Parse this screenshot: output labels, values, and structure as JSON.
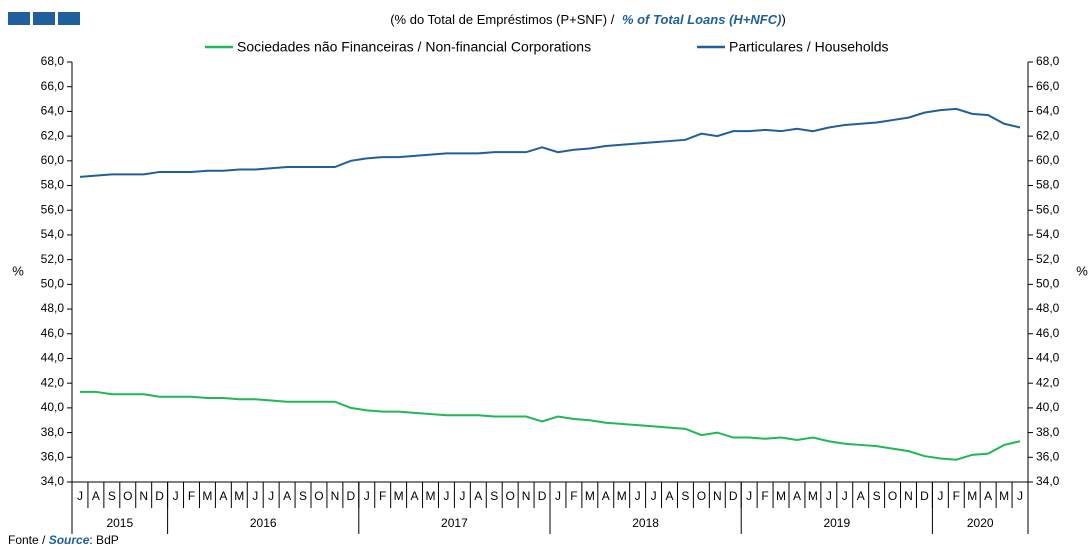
{
  "chart_data": {
    "type": "line",
    "title_pt": "(% do Total de Empréstimos (P+SNF)  /",
    "title_en": "% of Total Loans (H+NFC)",
    "title_close": ")",
    "ylabel": "%",
    "y2label": "%",
    "source_pt": "Fonte /",
    "source_en": "Source",
    "source_rest": ": BdP",
    "categories": [
      "J",
      "A",
      "S",
      "O",
      "N",
      "D",
      "J",
      "F",
      "M",
      "A",
      "M",
      "J",
      "J",
      "A",
      "S",
      "O",
      "N",
      "D",
      "J",
      "F",
      "M",
      "A",
      "M",
      "J",
      "J",
      "A",
      "S",
      "O",
      "N",
      "D",
      "J",
      "F",
      "M",
      "A",
      "M",
      "J",
      "J",
      "A",
      "S",
      "O",
      "N",
      "D",
      "J",
      "F",
      "M",
      "A",
      "M",
      "J",
      "J",
      "A",
      "S",
      "O",
      "N",
      "D",
      "J",
      "F",
      "M",
      "A",
      "M",
      "J"
    ],
    "years": [
      "2015",
      "2016",
      "2017",
      "2018",
      "2019",
      "2020"
    ],
    "year_spans": [
      6,
      12,
      12,
      12,
      12,
      6
    ],
    "series": [
      {
        "name": "Sociedades não Financeiras / Non-financial Corporations",
        "color": "#1db954",
        "values": [
          41.3,
          41.3,
          41.1,
          41.1,
          41.1,
          40.9,
          40.9,
          40.9,
          40.8,
          40.8,
          40.7,
          40.7,
          40.6,
          40.5,
          40.5,
          40.5,
          40.5,
          40.0,
          39.8,
          39.7,
          39.7,
          39.6,
          39.5,
          39.4,
          39.4,
          39.4,
          39.3,
          39.3,
          39.3,
          38.9,
          39.3,
          39.1,
          39.0,
          38.8,
          38.7,
          38.6,
          38.5,
          38.4,
          38.3,
          37.8,
          38.0,
          37.6,
          37.6,
          37.5,
          37.6,
          37.4,
          37.6,
          37.3,
          37.1,
          37.0,
          36.9,
          36.7,
          36.5,
          36.1,
          35.9,
          35.8,
          36.2,
          36.3,
          37.0,
          37.3
        ]
      },
      {
        "name": "Particulares / Households",
        "color": "#1f5f9e",
        "values": [
          58.7,
          58.8,
          58.9,
          58.9,
          58.9,
          59.1,
          59.1,
          59.1,
          59.2,
          59.2,
          59.3,
          59.3,
          59.4,
          59.5,
          59.5,
          59.5,
          59.5,
          60.0,
          60.2,
          60.3,
          60.3,
          60.4,
          60.5,
          60.6,
          60.6,
          60.6,
          60.7,
          60.7,
          60.7,
          61.1,
          60.7,
          60.9,
          61.0,
          61.2,
          61.3,
          61.4,
          61.5,
          61.6,
          61.7,
          62.2,
          62.0,
          62.4,
          62.4,
          62.5,
          62.4,
          62.6,
          62.4,
          62.7,
          62.9,
          63.0,
          63.1,
          63.3,
          63.5,
          63.9,
          64.1,
          64.2,
          63.8,
          63.7,
          63.0,
          62.7
        ]
      }
    ],
    "ylim": [
      34,
      68
    ],
    "yticks": [
      {
        "value": 34,
        "label": "34,0"
      },
      {
        "value": 36,
        "label": "36,0"
      },
      {
        "value": 38,
        "label": "38,0"
      },
      {
        "value": 40,
        "label": "40,0"
      },
      {
        "value": 42,
        "label": "42,0"
      },
      {
        "value": 44,
        "label": "44,0"
      },
      {
        "value": 46,
        "label": "46,0"
      },
      {
        "value": 48,
        "label": "48,0"
      },
      {
        "value": 50,
        "label": "50,0"
      },
      {
        "value": 52,
        "label": "52,0"
      },
      {
        "value": 54,
        "label": "54,0"
      },
      {
        "value": 56,
        "label": "56,0"
      },
      {
        "value": 58,
        "label": "58,0"
      },
      {
        "value": 60,
        "label": "60,0"
      },
      {
        "value": 62,
        "label": "62,0"
      },
      {
        "value": 64,
        "label": "64,0"
      },
      {
        "value": 66,
        "label": "66,0"
      },
      {
        "value": 68,
        "label": "68,0"
      }
    ],
    "y2lim": [
      34,
      68
    ],
    "y2ticks": [
      {
        "value": 34,
        "label": "34,0"
      },
      {
        "value": 36,
        "label": "36,0"
      },
      {
        "value": 38,
        "label": "38,0"
      },
      {
        "value": 40,
        "label": "40,0"
      },
      {
        "value": 42,
        "label": "42,0"
      },
      {
        "value": 44,
        "label": "44,0"
      },
      {
        "value": 46,
        "label": "46,0"
      },
      {
        "value": 48,
        "label": "48,0"
      },
      {
        "value": 50,
        "label": "50,0"
      },
      {
        "value": 52,
        "label": "52,0"
      },
      {
        "value": 54,
        "label": "54,0"
      },
      {
        "value": 56,
        "label": "56,0"
      },
      {
        "value": 58,
        "label": "58,0"
      },
      {
        "value": 60,
        "label": "60,0"
      },
      {
        "value": 62,
        "label": "62,0"
      },
      {
        "value": 64,
        "label": "64,0"
      },
      {
        "value": 66,
        "label": "66,0"
      },
      {
        "value": 68,
        "label": "68,0"
      }
    ],
    "grid": false
  }
}
